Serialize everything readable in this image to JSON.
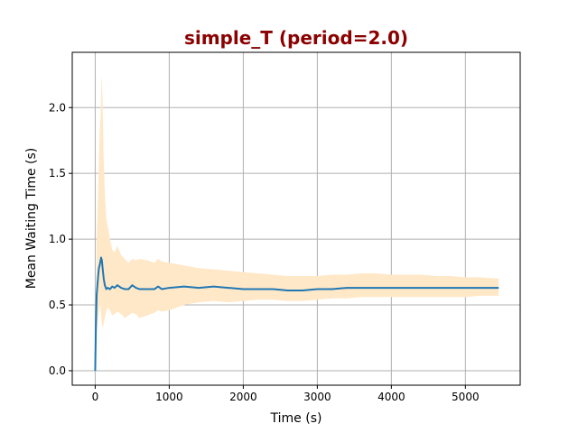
{
  "chart_data": {
    "type": "line",
    "title": "simple_T (period=2.0)",
    "title_color": "#8b0000",
    "xlabel": "Time (s)",
    "ylabel": "Mean Waiting Time (s)",
    "xlim": [
      -310,
      5740
    ],
    "ylim": [
      -0.11,
      2.42
    ],
    "xticks": [
      0,
      1000,
      2000,
      3000,
      4000,
      5000
    ],
    "yticks": [
      0.0,
      0.5,
      1.0,
      1.5,
      2.0
    ],
    "xtick_labels": [
      "0",
      "1000",
      "2000",
      "3000",
      "4000",
      "5000"
    ],
    "ytick_labels": [
      "0.0",
      "0.5",
      "1.0",
      "1.5",
      "2.0"
    ],
    "grid": true,
    "line_color": "#1f77b4",
    "band_color": "#ffe8c7",
    "series": [
      {
        "x": [
          0,
          10,
          20,
          30,
          40,
          50,
          60,
          70,
          80,
          90,
          100,
          115,
          130,
          150,
          170,
          200,
          230,
          260,
          300,
          350,
          400,
          450,
          500,
          550,
          600,
          700,
          800,
          850,
          900,
          1000,
          1200,
          1400,
          1600,
          1800,
          2000,
          2200,
          2400,
          2600,
          2800,
          3000,
          3200,
          3400,
          3600,
          3800,
          4000,
          4200,
          4400,
          4600,
          4800,
          5000,
          5200,
          5450
        ],
        "y": [
          0.0,
          0.35,
          0.58,
          0.65,
          0.72,
          0.78,
          0.8,
          0.83,
          0.86,
          0.84,
          0.78,
          0.7,
          0.65,
          0.62,
          0.63,
          0.62,
          0.64,
          0.63,
          0.65,
          0.63,
          0.62,
          0.62,
          0.65,
          0.63,
          0.62,
          0.62,
          0.62,
          0.64,
          0.62,
          0.63,
          0.64,
          0.63,
          0.64,
          0.63,
          0.62,
          0.62,
          0.62,
          0.61,
          0.61,
          0.62,
          0.62,
          0.63,
          0.63,
          0.63,
          0.63,
          0.63,
          0.63,
          0.63,
          0.63,
          0.63,
          0.63,
          0.63
        ],
        "lower": [
          0.0,
          0.2,
          0.3,
          0.35,
          0.4,
          0.45,
          0.48,
          0.5,
          0.42,
          0.35,
          0.33,
          0.36,
          0.4,
          0.45,
          0.48,
          0.46,
          0.42,
          0.43,
          0.45,
          0.43,
          0.4,
          0.42,
          0.44,
          0.43,
          0.4,
          0.42,
          0.44,
          0.46,
          0.45,
          0.46,
          0.5,
          0.52,
          0.53,
          0.52,
          0.53,
          0.54,
          0.54,
          0.53,
          0.53,
          0.54,
          0.55,
          0.55,
          0.56,
          0.56,
          0.56,
          0.56,
          0.56,
          0.56,
          0.56,
          0.56,
          0.57,
          0.57
        ],
        "upper": [
          0.0,
          0.6,
          1.0,
          1.2,
          1.4,
          1.6,
          1.8,
          1.9,
          2.1,
          2.25,
          2.05,
          1.6,
          1.35,
          1.15,
          1.1,
          1.0,
          0.92,
          0.9,
          0.95,
          0.88,
          0.85,
          0.82,
          0.85,
          0.84,
          0.85,
          0.84,
          0.82,
          0.85,
          0.83,
          0.82,
          0.8,
          0.78,
          0.77,
          0.76,
          0.75,
          0.74,
          0.73,
          0.72,
          0.72,
          0.72,
          0.73,
          0.73,
          0.74,
          0.74,
          0.73,
          0.73,
          0.73,
          0.72,
          0.72,
          0.71,
          0.71,
          0.7
        ]
      }
    ]
  }
}
